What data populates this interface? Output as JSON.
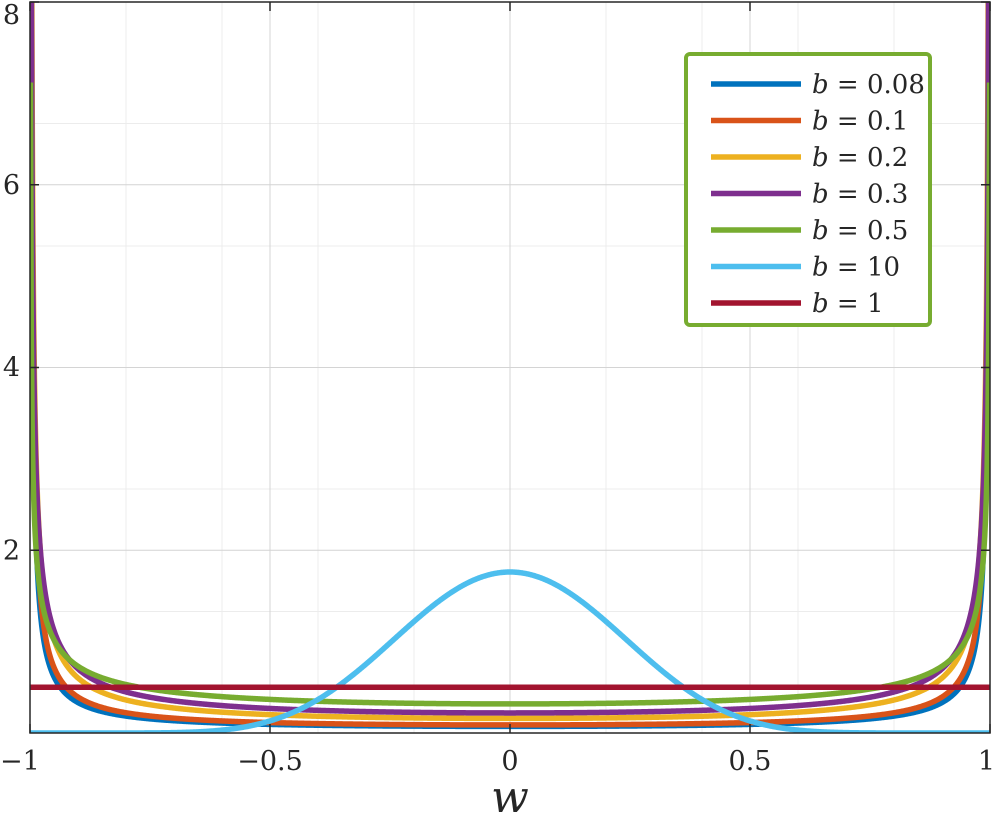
{
  "chart_data": {
    "type": "line",
    "title": "",
    "xlabel": "w",
    "ylabel": "",
    "xlim": [
      -1,
      1
    ],
    "ylim": [
      0,
      8
    ],
    "xticks": [
      -1,
      -0.5,
      0,
      0.5,
      1
    ],
    "xtick_labels": [
      "−1",
      "−0.5",
      "0",
      "0.5",
      "1"
    ],
    "yticks": [
      2,
      4,
      6,
      8
    ],
    "ytick_labels": [
      "2",
      "4",
      "6",
      "8"
    ],
    "minor_grid_x": [
      -0.8,
      -0.6,
      -0.4,
      -0.2,
      0.2,
      0.4,
      0.6,
      0.8
    ],
    "minor_grid_y": [
      1.33,
      2.67,
      5.33,
      6.67
    ],
    "grid": true,
    "legend_position": "top-right",
    "legend_border_color": "#77AC30",
    "series": [
      {
        "name": "b = 0.08",
        "b": 0.08,
        "color": "#0072BD"
      },
      {
        "name": "b = 0.1",
        "b": 0.1,
        "color": "#D95319"
      },
      {
        "name": "b = 0.2",
        "b": 0.2,
        "color": "#EDB120"
      },
      {
        "name": "b = 0.3",
        "b": 0.3,
        "color": "#7E2F8E"
      },
      {
        "name": "b = 0.5",
        "b": 0.5,
        "color": "#77AC30"
      },
      {
        "name": "b = 10",
        "b": 10,
        "color": "#4DBEEE"
      },
      {
        "name": "b = 1",
        "b": 1,
        "color": "#A2142F"
      }
    ]
  }
}
